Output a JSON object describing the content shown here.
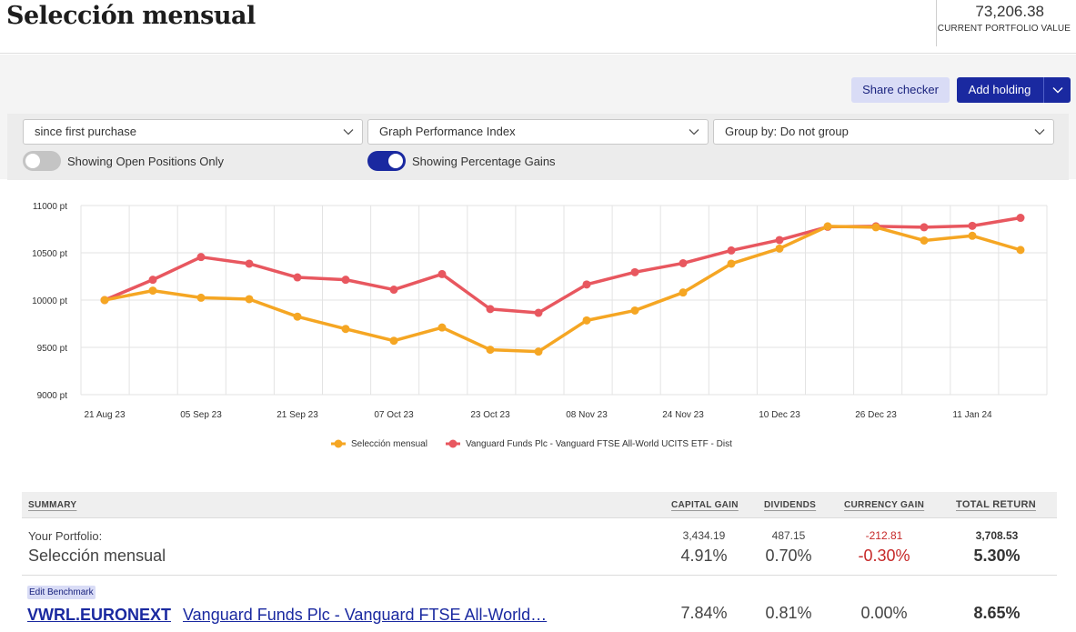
{
  "header": {
    "title": "Selección mensual",
    "portfolio_value": "73,206.38",
    "portfolio_value_label": "CURRENT PORTFOLIO VALUE"
  },
  "actions": {
    "share_checker": "Share checker",
    "add_holding": "Add holding"
  },
  "filters": {
    "period": "since first purchase",
    "graph_type": "Graph Performance Index",
    "group_by": "Group by: Do not group",
    "open_positions_toggle": {
      "label": "Showing Open Positions Only",
      "on": false
    },
    "percentage_toggle": {
      "label": "Showing Percentage Gains",
      "on": true
    }
  },
  "colors": {
    "accent": "#1a29a0",
    "portfolio_series": "#f5a623",
    "benchmark_series": "#e8575f",
    "negative": "#c62828"
  },
  "chart_data": {
    "type": "line",
    "y_ticks": [
      "11000 pt",
      "10500 pt",
      "10000 pt",
      "9500 pt",
      "9000 pt"
    ],
    "ylim": [
      9000,
      11000
    ],
    "x_tick_labels": [
      "21 Aug 23",
      "05 Sep 23",
      "21 Sep 23",
      "07 Oct 23",
      "23 Oct 23",
      "08 Nov 23",
      "24 Nov 23",
      "10 Dec 23",
      "26 Dec 23",
      "11 Jan 24"
    ],
    "grid": true,
    "legend_position": "bottom",
    "series": [
      {
        "name": "Selección mensual",
        "color": "#f5a623",
        "values": [
          10000,
          10100,
          10025,
          10010,
          9825,
          9695,
          9570,
          9710,
          9475,
          9455,
          9785,
          9890,
          10080,
          10385,
          10545,
          10780,
          10770,
          10630,
          10680,
          10530
        ]
      },
      {
        "name": "Vanguard Funds Plc - Vanguard FTSE All-World UCITS ETF - Dist",
        "color": "#e8575f",
        "values": [
          10000,
          10215,
          10455,
          10385,
          10240,
          10215,
          10110,
          10275,
          9905,
          9865,
          10165,
          10295,
          10390,
          10525,
          10635,
          10775,
          10780,
          10770,
          10785,
          10870
        ]
      }
    ]
  },
  "summary": {
    "headers": {
      "summary": "SUMMARY",
      "capital_gain": "CAPITAL GAIN",
      "dividends": "DIVIDENDS",
      "currency_gain": "CURRENCY GAIN",
      "total_return": "TOTAL RETURN"
    },
    "portfolio": {
      "label": "Your Portfolio:",
      "name": "Selección mensual",
      "capital_gain": "3,434.19",
      "capital_gain_pct": "4.91%",
      "dividends": "487.15",
      "dividends_pct": "0.70%",
      "currency_gain": "-212.81",
      "currency_gain_pct": "-0.30%",
      "total_return": "3,708.53",
      "total_return_pct": "5.30%"
    },
    "benchmark": {
      "edit_label": "Edit Benchmark",
      "ticker": "VWRL.EURONEXT",
      "name": "Vanguard Funds Plc - Vanguard FTSE All-World…",
      "capital_gain_pct": "7.84%",
      "dividends_pct": "0.81%",
      "currency_gain_pct": "0.00%",
      "total_return_pct": "8.65%"
    }
  }
}
